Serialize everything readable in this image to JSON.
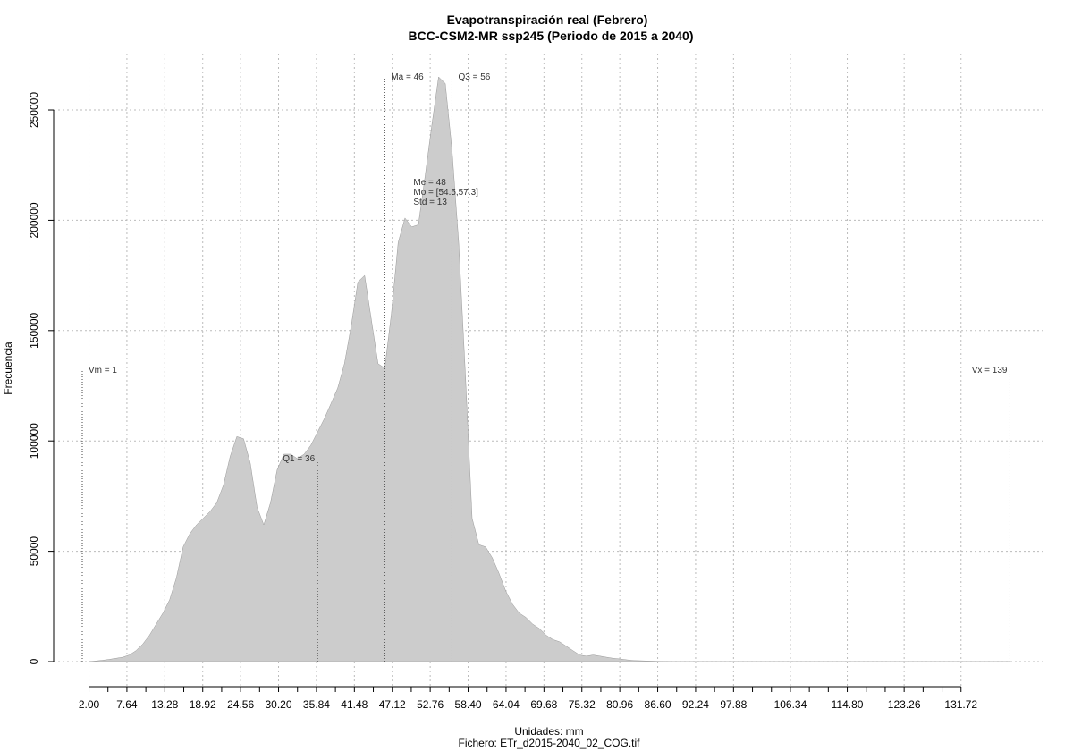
{
  "chart_data": {
    "type": "area",
    "title": "Evapotranspiración real (Febrero)",
    "subtitle": "BCC-CSM2-MR ssp245 (Periodo de 2015 a 2040)",
    "xlabel": "Unidades: mm",
    "ylabel": "Frecuencia",
    "footer": "Fichero: ETr_d2015-2040_02_COG.tif",
    "xlim": [
      1,
      140
    ],
    "ylim": [
      0,
      265000
    ],
    "grid": true,
    "fill_color": "#cccccc",
    "x_tick_labels": [
      "2.00",
      "7.64",
      "13.28",
      "18.92",
      "24.56",
      "30.20",
      "35.84",
      "41.48",
      "47.12",
      "52.76",
      "58.40",
      "64.04",
      "69.68",
      "75.32",
      "80.96",
      "86.60",
      "92.24",
      "97.88",
      "106.34",
      "114.80",
      "123.26",
      "131.72"
    ],
    "y_tick_labels": [
      "0",
      "50000",
      "100000",
      "150000",
      "200000",
      "250000"
    ],
    "series": [
      {
        "x": [
          2,
          3,
          4,
          5,
          6,
          7,
          8,
          9,
          10,
          11,
          12,
          13,
          14,
          15,
          16,
          17,
          18,
          19,
          20,
          21,
          22,
          23,
          24,
          25,
          26,
          27,
          28,
          29,
          30,
          31,
          32,
          33,
          34,
          35,
          36,
          37,
          38,
          39,
          40,
          41,
          42,
          43,
          44,
          45,
          46,
          47,
          48,
          49,
          50,
          51,
          52,
          53,
          54,
          55,
          56,
          57,
          58,
          59,
          60,
          61,
          62,
          63,
          64,
          65,
          66,
          67,
          68,
          69,
          70,
          71,
          72,
          73,
          74,
          75,
          76,
          77,
          78,
          79,
          80,
          81,
          82,
          83,
          84,
          85,
          86,
          87,
          88,
          89,
          90,
          92,
          95,
          100,
          110,
          120,
          130,
          139
        ],
        "y": [
          0,
          300,
          600,
          1000,
          1500,
          2000,
          3000,
          5000,
          8000,
          12000,
          17000,
          22000,
          28000,
          38000,
          52000,
          58000,
          62000,
          65000,
          68000,
          72000,
          80000,
          93000,
          102000,
          101000,
          90000,
          70000,
          62000,
          72000,
          87000,
          94000,
          94000,
          92000,
          94000,
          98000,
          104000,
          110000,
          117000,
          124000,
          135000,
          152000,
          172000,
          175000,
          155000,
          135000,
          133000,
          158000,
          190000,
          201000,
          197000,
          198000,
          220000,
          243000,
          265000,
          262000,
          232000,
          190000,
          130000,
          65000,
          53000,
          52000,
          47000,
          40000,
          32000,
          26000,
          22000,
          20000,
          17000,
          15000,
          12000,
          10000,
          9000,
          7000,
          5000,
          3000,
          2500,
          3000,
          2500,
          2000,
          1500,
          1200,
          800,
          500,
          400,
          300,
          200,
          100,
          50,
          0,
          0,
          0,
          0,
          0,
          0,
          0,
          0,
          0
        ]
      }
    ],
    "annotations": [
      {
        "label": "Vm = 1",
        "x": 1,
        "y": 132000,
        "anchor": "start"
      },
      {
        "label": "Q1 = 36",
        "x": 36,
        "y": 92000,
        "anchor": "end"
      },
      {
        "label": "Ma = 46",
        "x": 46,
        "y": 265000,
        "anchor": "start"
      },
      {
        "label": "Q3 = 56",
        "x": 56,
        "y": 265000,
        "anchor": "start"
      },
      {
        "label": "Vx = 139",
        "x": 139,
        "y": 132000,
        "anchor": "end"
      }
    ],
    "stats_box": [
      "Me = 48",
      "Mo = [54.5,57.3]",
      "Std = 13"
    ],
    "stats_box_pos": {
      "x": 50,
      "y": 216000
    }
  }
}
